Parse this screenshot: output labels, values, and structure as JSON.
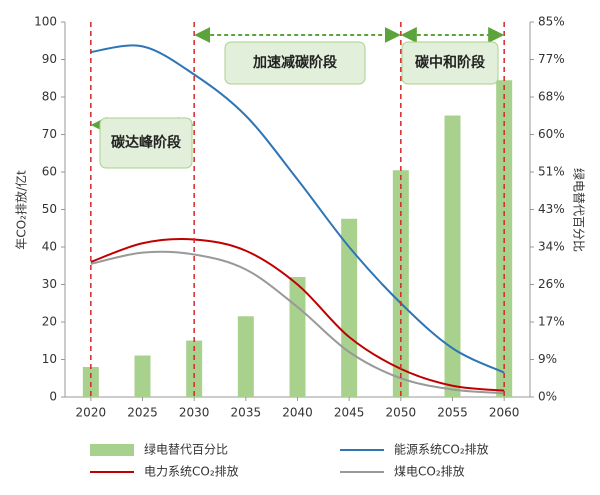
{
  "chart_data": {
    "type": "combo",
    "y_label": "年CO₂排放/亿t",
    "y2_label": "绿电替代百分比",
    "x": [
      2020,
      2025,
      2030,
      2035,
      2040,
      2045,
      2050,
      2055,
      2060
    ],
    "xlim": [
      2017.5,
      2062.5
    ],
    "xticks": [
      2020,
      2025,
      2030,
      2035,
      2040,
      2045,
      2050,
      2055,
      2060
    ],
    "ylim": [
      0,
      100
    ],
    "yticks": [
      0,
      10,
      20,
      30,
      40,
      50,
      60,
      70,
      80,
      90,
      100
    ],
    "y2lim": [
      0,
      85
    ],
    "y2ticks": [
      {
        "value": 0,
        "label": "0%"
      },
      {
        "value": 8.5,
        "label": "9%"
      },
      {
        "value": 17,
        "label": "17%"
      },
      {
        "value": 25.5,
        "label": "26%"
      },
      {
        "value": 34,
        "label": "34%"
      },
      {
        "value": 42.5,
        "label": "43%"
      },
      {
        "value": 51,
        "label": "51%"
      },
      {
        "value": 59.5,
        "label": "60%"
      },
      {
        "value": 68,
        "label": "68%"
      },
      {
        "value": 76.5,
        "label": "77%"
      },
      {
        "value": 85,
        "label": "85%"
      }
    ],
    "grid": false,
    "series": [
      {
        "name": "绿电替代百分比",
        "type": "bar",
        "axis": "y2",
        "color": "#a9d18e",
        "values": [
          6.8,
          9.4,
          12.8,
          18.3,
          27.2,
          40.4,
          51.4,
          63.8,
          71.8
        ]
      },
      {
        "name": "能源系统CO₂排放",
        "type": "line",
        "color": "#2e75b6",
        "values": [
          92,
          93.5,
          86,
          75,
          58,
          40,
          25,
          13,
          6.5
        ]
      },
      {
        "name": "电力系统CO₂排放",
        "type": "line",
        "color": "#c00000",
        "values": [
          36,
          41,
          42,
          39,
          30,
          16,
          7.5,
          3,
          1.7
        ]
      },
      {
        "name": "煤电CO₂排放",
        "type": "line",
        "color": "#999999",
        "values": [
          35.5,
          38.5,
          38,
          34,
          24,
          12,
          5,
          2,
          1
        ]
      }
    ],
    "stages": [
      {
        "label": "碳达峰阶段",
        "start": 2020,
        "end": 2030
      },
      {
        "label": "加速减碳阶段",
        "start": 2030,
        "end": 2050
      },
      {
        "label": "碳中和阶段",
        "start": 2050,
        "end": 2060
      }
    ]
  }
}
